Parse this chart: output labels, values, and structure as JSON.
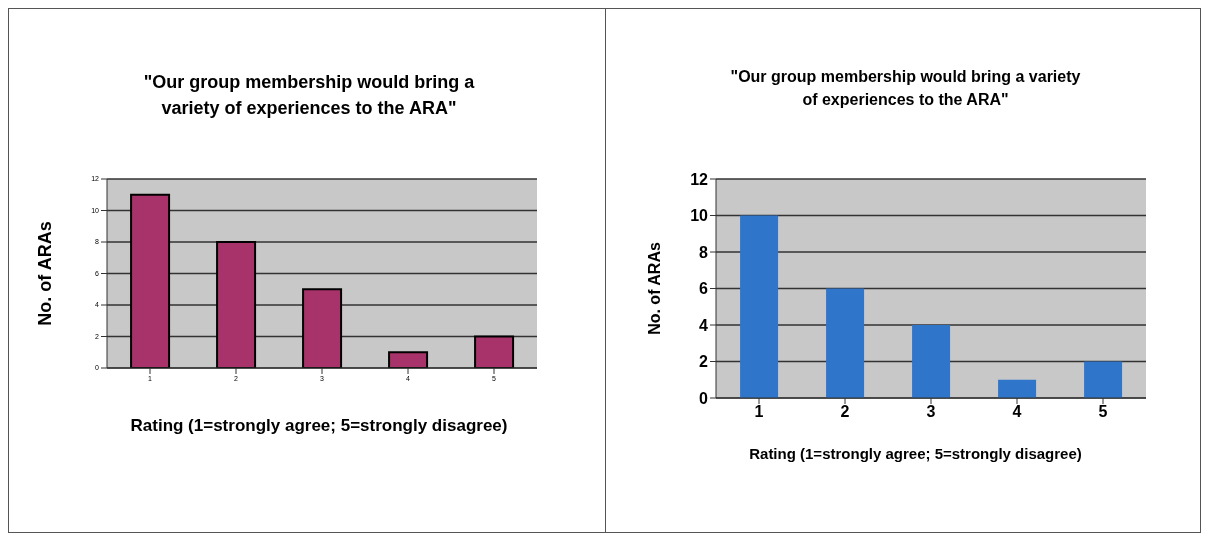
{
  "chart_data": [
    {
      "type": "bar",
      "title": "\"Our group membership would bring a variety of experiences to the ARA\"",
      "xlabel": "Rating (1=strongly agree; 5=strongly disagree)",
      "ylabel": "No. of ARAs",
      "categories": [
        "1",
        "2",
        "3",
        "4",
        "5"
      ],
      "values": [
        11,
        8,
        5,
        1,
        2
      ],
      "color": "#a8336a",
      "ylim": [
        0,
        12
      ],
      "yticks": [
        0,
        2,
        4,
        6,
        8,
        10,
        12
      ],
      "grid": "y"
    },
    {
      "type": "bar",
      "title": "\"Our group membership would bring a variety of experiences to the ARA\"",
      "xlabel": "Rating (1=strongly agree; 5=strongly disagree)",
      "ylabel": "No. of ARAs",
      "categories": [
        "1",
        "2",
        "3",
        "4",
        "5"
      ],
      "values": [
        10,
        6,
        4,
        1,
        2
      ],
      "color": "#2f75c9",
      "ylim": [
        0,
        12
      ],
      "yticks": [
        0,
        2,
        4,
        6,
        8,
        10,
        12
      ],
      "grid": "y"
    }
  ]
}
